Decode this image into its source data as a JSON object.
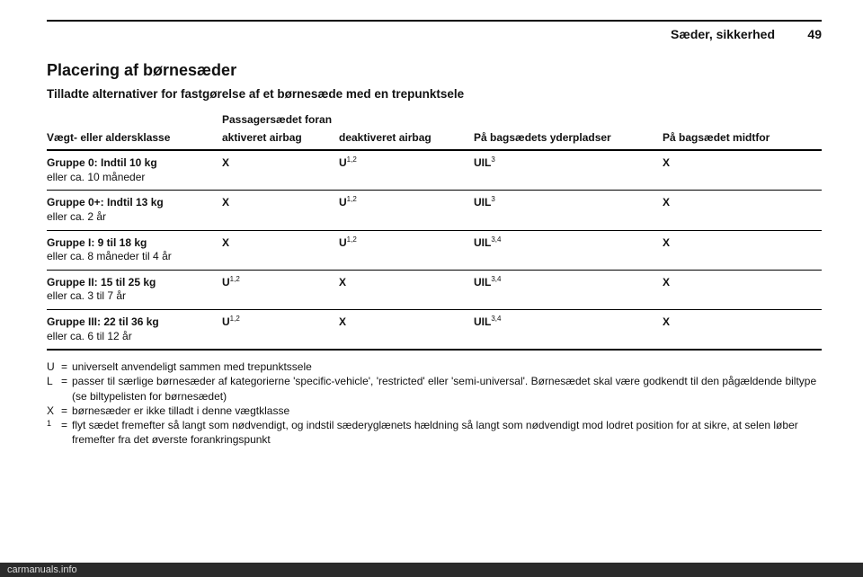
{
  "header": {
    "section": "Sæder, sikkerhed",
    "page_number": "49"
  },
  "title": "Placering af børnesæder",
  "subtitle": "Tilladte alternativer for fastgørelse af et børnesæde med en trepunktsele",
  "table": {
    "span_header": "Passagersædet foran",
    "columns": {
      "c1": "Vægt- eller aldersklasse",
      "c2": "aktiveret airbag",
      "c3": "deaktiveret airbag",
      "c4": "På bagsædets yderpladser",
      "c5": "På bagsædet midtfor"
    },
    "rows": [
      {
        "c1a": "Gruppe 0: Indtil 10 kg",
        "c1b": "eller ca. 10 måneder",
        "c2": "X",
        "c3": "U",
        "c3_sup": "1,2",
        "c4": "UIL",
        "c4_sup": "3",
        "c5": "X"
      },
      {
        "c1a": "Gruppe 0+: Indtil 13 kg",
        "c1b": "eller ca. 2 år",
        "c2": "X",
        "c3": "U",
        "c3_sup": "1,2",
        "c4": "UIL",
        "c4_sup": "3",
        "c5": "X"
      },
      {
        "c1a": "Gruppe I: 9 til 18 kg",
        "c1b": "eller ca. 8 måneder til 4 år",
        "c2": "X",
        "c3": "U",
        "c3_sup": "1,2",
        "c4": "UIL",
        "c4_sup": "3,4",
        "c5": "X"
      },
      {
        "c1a": "Gruppe II: 15 til 25 kg",
        "c1b": "eller ca. 3 til 7 år",
        "c2": "U",
        "c2_sup": "1,2",
        "c3": "X",
        "c4": "UIL",
        "c4_sup": "3,4",
        "c5": "X"
      },
      {
        "c1a": "Gruppe III: 22 til 36 kg",
        "c1b": "eller ca. 6 til 12 år",
        "c2": "U",
        "c2_sup": "1,2",
        "c3": "X",
        "c4": "UIL",
        "c4_sup": "3,4",
        "c5": "X"
      }
    ]
  },
  "legend": {
    "U": "universelt anvendeligt sammen med trepunktssele",
    "L": "passer til særlige børnesæder af kategorierne 'specific-vehicle', 'restricted' eller 'semi-universal'. Børnesædet skal være godkendt til den pågældende biltype (se biltypelisten for børnesædet)",
    "X": "børnesæder er ikke tilladt i denne vægtklasse",
    "note1": "flyt sædet fremefter så langt som nødvendigt, og indstil sæderyglænets hældning så langt som nødvendigt mod lodret position for at sikre, at selen løber fremefter fra det øverste forankringspunkt"
  },
  "eq": "=",
  "footer": "carmanuals.info"
}
